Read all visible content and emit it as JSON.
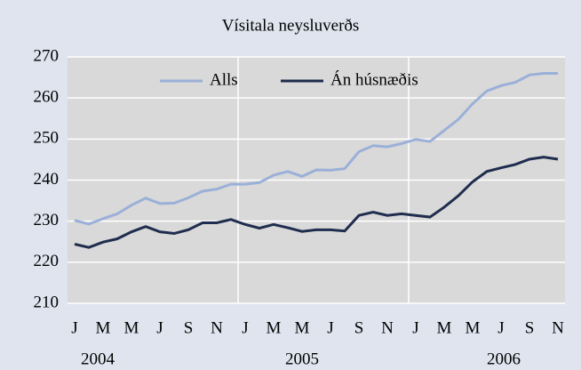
{
  "chart_data": {
    "type": "line",
    "title": "Vísitala neysluverðs",
    "categories": [
      "J",
      null,
      "M",
      null,
      "M",
      null,
      "J",
      null,
      "S",
      null,
      "N",
      null,
      "J",
      null,
      "M",
      null,
      "M",
      null,
      "J",
      null,
      "S",
      null,
      "N",
      null,
      "J",
      null,
      "M",
      null,
      "M",
      null,
      "J",
      null,
      "S",
      null,
      "N"
    ],
    "years": [
      "2004",
      "2005",
      "2006"
    ],
    "series": [
      {
        "name": "Alls",
        "color": "#9bb0d8",
        "values": [
          230.2,
          229.3,
          230.6,
          231.8,
          233.9,
          235.6,
          234.3,
          234.4,
          235.7,
          237.3,
          237.8,
          239.0,
          239.0,
          239.4,
          241.2,
          242.1,
          240.9,
          242.5,
          242.4,
          242.8,
          246.9,
          248.4,
          248.1,
          248.9,
          249.9,
          249.4,
          252.1,
          254.8,
          258.6,
          261.7,
          263.0,
          263.8,
          265.6,
          266.0,
          266.0
        ]
      },
      {
        "name": "Án húsnæðis",
        "color": "#1f2d4e",
        "values": [
          224.4,
          223.6,
          224.9,
          225.7,
          227.4,
          228.7,
          227.4,
          227.0,
          227.9,
          229.6,
          229.6,
          230.4,
          229.2,
          228.3,
          229.2,
          228.4,
          227.5,
          227.9,
          227.9,
          227.6,
          231.4,
          232.2,
          231.4,
          231.8,
          231.4,
          231.0,
          233.4,
          236.2,
          239.6,
          242.1,
          243.0,
          243.8,
          245.1,
          245.6,
          245.1
        ]
      }
    ],
    "ylim": [
      210,
      270
    ],
    "yticks": [
      210,
      220,
      230,
      240,
      250,
      260,
      270
    ],
    "grid": true,
    "legend": "top"
  }
}
